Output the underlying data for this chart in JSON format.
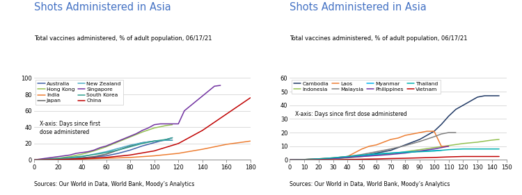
{
  "title": "Shots Administered in Asia",
  "subtitle": "Total vaccines administered, % of adult population, 06/17/21",
  "source": "Sources: Our World in Data, World Bank, Moody’s Analytics",
  "title_color": "#4472C4",
  "chart1": {
    "xlim": [
      0,
      180
    ],
    "ylim": [
      0,
      100
    ],
    "xticks": [
      0,
      20,
      40,
      60,
      80,
      100,
      120,
      140,
      160,
      180
    ],
    "yticks": [
      0,
      20,
      40,
      60,
      80,
      100
    ],
    "xaxis_note": "X-axis: Days since first\ndose administered",
    "legend_ncol": 2,
    "series": {
      "Australia": {
        "color": "#3F5FA8",
        "x": [
          0,
          10,
          20,
          30,
          40,
          50,
          60,
          70,
          80,
          90,
          100,
          110,
          115
        ],
        "y": [
          0,
          0.4,
          0.8,
          1.5,
          2.5,
          3.5,
          5,
          8,
          12,
          17,
          21,
          25,
          27
        ]
      },
      "Hong Kong": {
        "color": "#92C050",
        "x": [
          0,
          10,
          20,
          30,
          40,
          50,
          60,
          70,
          80,
          90,
          100,
          110,
          115
        ],
        "y": [
          0,
          1,
          2,
          4,
          7,
          11,
          16,
          22,
          28,
          34,
          39,
          42,
          43
        ]
      },
      "India": {
        "color": "#ED7D31",
        "x": [
          0,
          20,
          40,
          60,
          80,
          100,
          120,
          140,
          160,
          180
        ],
        "y": [
          0,
          0.5,
          1,
          2,
          3,
          5,
          8,
          13,
          19,
          23
        ]
      },
      "Japan": {
        "color": "#636363",
        "x": [
          0,
          10,
          20,
          30,
          40,
          50,
          60,
          70,
          80,
          90,
          100,
          110,
          115
        ],
        "y": [
          0,
          0.3,
          0.7,
          1.5,
          2.5,
          4,
          7,
          12,
          17,
          21,
          23,
          24,
          24
        ]
      },
      "New Zealand": {
        "color": "#4BACC6",
        "x": [
          0,
          10,
          20,
          30,
          40,
          50,
          60,
          70,
          80,
          90,
          100,
          110,
          115
        ],
        "y": [
          0,
          0.4,
          1,
          2,
          4,
          7,
          10,
          14,
          18,
          21,
          23,
          24,
          24
        ]
      },
      "Singapore": {
        "color": "#7030A0",
        "x": [
          0,
          5,
          10,
          15,
          20,
          25,
          30,
          35,
          40,
          45,
          50,
          55,
          60,
          65,
          70,
          75,
          80,
          85,
          90,
          95,
          100,
          105,
          110,
          115,
          120,
          125,
          150,
          155
        ],
        "y": [
          0,
          1,
          2,
          3,
          4,
          5,
          6,
          8,
          9,
          10,
          12,
          15,
          17,
          20,
          23,
          26,
          29,
          32,
          36,
          39,
          43,
          44,
          44,
          44,
          44,
          60,
          90,
          91
        ]
      },
      "South Korea": {
        "color": "#2E9E8E",
        "x": [
          0,
          10,
          20,
          30,
          40,
          50,
          60,
          70,
          80,
          90,
          100,
          110,
          115
        ],
        "y": [
          0,
          0.8,
          1.8,
          3,
          4.5,
          6.5,
          9,
          12,
          16,
          20,
          23,
          25,
          27
        ]
      },
      "China": {
        "color": "#C00000",
        "x": [
          0,
          20,
          40,
          60,
          80,
          100,
          120,
          140,
          160,
          180
        ],
        "y": [
          0,
          0.5,
          1.5,
          3,
          6,
          11,
          20,
          36,
          56,
          76
        ]
      }
    }
  },
  "chart2": {
    "xlim": [
      0,
      150
    ],
    "ylim": [
      0,
      60
    ],
    "xticks": [
      0,
      10,
      20,
      30,
      40,
      50,
      60,
      70,
      80,
      90,
      100,
      110,
      120,
      130,
      140,
      150
    ],
    "yticks": [
      0,
      10,
      20,
      30,
      40,
      50,
      60
    ],
    "xaxis_note": "X-axis: Days since first dose administered",
    "legend_ncol": 4,
    "series": {
      "Cambodia": {
        "color": "#1F3864",
        "x": [
          0,
          10,
          20,
          30,
          40,
          50,
          55,
          60,
          65,
          70,
          75,
          80,
          85,
          90,
          95,
          100,
          105,
          110,
          115,
          120,
          125,
          130,
          135,
          140,
          145
        ],
        "y": [
          0,
          0.3,
          0.7,
          1.2,
          2,
          3,
          4,
          5,
          6,
          7,
          9,
          11,
          13,
          15,
          18,
          21,
          26,
          32,
          37,
          40,
          43,
          46,
          47,
          47,
          47
        ]
      },
      "Indonesia": {
        "color": "#92C050",
        "x": [
          0,
          10,
          20,
          30,
          40,
          50,
          60,
          70,
          80,
          90,
          100,
          110,
          120,
          130,
          140,
          145
        ],
        "y": [
          0,
          0.2,
          0.5,
          1,
          1.5,
          2.5,
          3.5,
          4.5,
          6,
          7.5,
          9,
          10.5,
          12,
          13,
          14.5,
          15
        ]
      },
      "Laos": {
        "color": "#ED7D31",
        "x": [
          0,
          10,
          20,
          30,
          40,
          50,
          55,
          60,
          65,
          70,
          75,
          80,
          85,
          90,
          95,
          100,
          105,
          110
        ],
        "y": [
          0,
          0.3,
          0.8,
          1.5,
          2.5,
          8,
          10,
          11,
          13,
          15,
          16,
          18,
          19,
          20,
          21,
          21,
          10,
          10
        ]
      },
      "Malaysia": {
        "color": "#7F7F7F",
        "x": [
          0,
          10,
          20,
          30,
          40,
          50,
          60,
          70,
          80,
          90,
          100,
          105,
          110,
          115
        ],
        "y": [
          0,
          0.3,
          0.7,
          1.5,
          2.5,
          4,
          6,
          8,
          10.5,
          13.5,
          17,
          19,
          20,
          20
        ]
      },
      "Myanmar": {
        "color": "#00B0F0",
        "x": [
          0,
          10,
          20,
          30,
          40,
          50,
          60,
          70,
          80,
          90,
          100,
          105
        ],
        "y": [
          0,
          0.2,
          0.5,
          1,
          1.8,
          2.8,
          4,
          5,
          5.8,
          6.3,
          6.8,
          7
        ]
      },
      "Philippines": {
        "color": "#7030A0",
        "x": [
          0,
          10,
          20,
          30,
          40,
          50,
          60,
          70,
          80,
          90,
          100,
          105,
          110
        ],
        "y": [
          0,
          0.2,
          0.5,
          1,
          1.8,
          2.5,
          3.2,
          4,
          5,
          6.5,
          8,
          9,
          10
        ]
      },
      "Thailand": {
        "color": "#00B0B0",
        "x": [
          0,
          10,
          20,
          30,
          40,
          50,
          60,
          70,
          80,
          90,
          100,
          105,
          110,
          120,
          130,
          140,
          145
        ],
        "y": [
          0,
          0.3,
          0.8,
          1.5,
          2.5,
          3.5,
          4.5,
          5,
          5.5,
          6,
          6.5,
          7,
          7.5,
          8,
          8,
          8,
          8
        ]
      },
      "Vietnam": {
        "color": "#C00000",
        "x": [
          0,
          10,
          20,
          30,
          40,
          50,
          60,
          70,
          80,
          90,
          100,
          105,
          110,
          120,
          130,
          140,
          145
        ],
        "y": [
          0,
          0.05,
          0.1,
          0.2,
          0.3,
          0.5,
          0.7,
          1,
          1.2,
          1.5,
          1.8,
          2,
          2.2,
          2.5,
          2.5,
          2.5,
          2.5
        ]
      }
    }
  }
}
